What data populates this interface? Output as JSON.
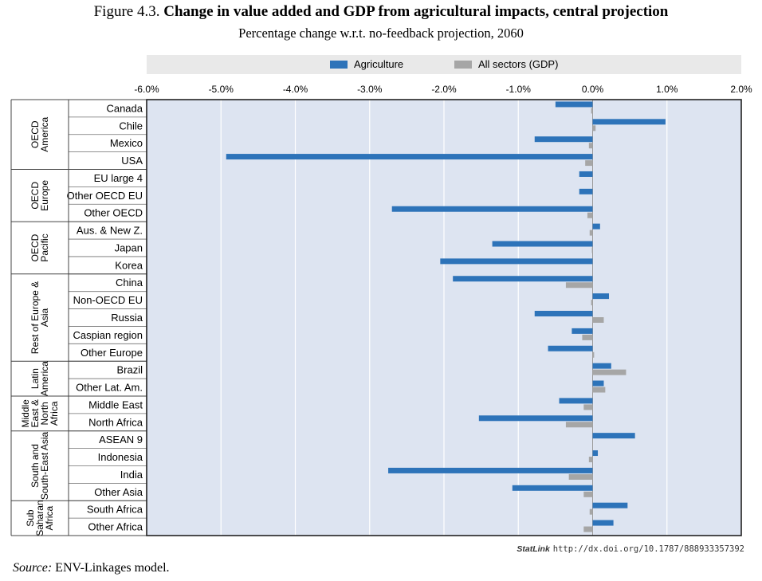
{
  "title_prefix": "Figure 4.3.",
  "title_main": "Change in value added and GDP from agricultural impacts, central projection",
  "subtitle": "Percentage change w.r.t. no-feedback projection, 2060",
  "source_label": "Source:",
  "source_text": "ENV-Linkages model.",
  "statlink_brand": "StatLink",
  "statlink_url": "http://dx.doi.org/10.1787/888933357392",
  "colors": {
    "agriculture": "#2d73b9",
    "gdp": "#a6a6a6",
    "plot_bg": "#dde4f1"
  },
  "chart_data": {
    "type": "bar",
    "orientation": "horizontal",
    "xlim": [
      -6.0,
      2.0
    ],
    "x_ticks": [
      "-6.0%",
      "-5.0%",
      "-4.0%",
      "-3.0%",
      "-2.0%",
      "-1.0%",
      "0.0%",
      "1.0%",
      "2.0%"
    ],
    "x_tick_values": [
      -6,
      -5,
      -4,
      -3,
      -2,
      -1,
      0,
      1,
      2
    ],
    "grid": "vertical",
    "legend_position": "top",
    "categories": [
      "Canada",
      "Chile",
      "Mexico",
      "USA",
      "EU large 4",
      "Other OECD EU",
      "Other OECD",
      "Aus. & New Z.",
      "Japan",
      "Korea",
      "China",
      "Non-OECD EU",
      "Russia",
      "Caspian region",
      "Other Europe",
      "Brazil",
      "Other Lat. Am.",
      "Middle East",
      "North Africa",
      "ASEAN 9",
      "Indonesia",
      "India",
      "Other Asia",
      "South Africa",
      "Other Africa"
    ],
    "groups": [
      {
        "label_lines": [
          "OECD",
          "America"
        ],
        "count": 4
      },
      {
        "label_lines": [
          "OECD",
          "Europe"
        ],
        "count": 3
      },
      {
        "label_lines": [
          "OECD",
          "Pacific"
        ],
        "count": 3
      },
      {
        "label_lines": [
          "Rest of Europe &",
          "Asia"
        ],
        "count": 5
      },
      {
        "label_lines": [
          "Latin",
          "America"
        ],
        "count": 2
      },
      {
        "label_lines": [
          "Middle",
          "East &",
          "North",
          "Africa"
        ],
        "count": 2
      },
      {
        "label_lines": [
          "South and",
          "South-East Asia"
        ],
        "count": 4
      },
      {
        "label_lines": [
          "Sub",
          "Saharan",
          "Africa"
        ],
        "count": 2
      }
    ],
    "series": [
      {
        "name": "Agriculture",
        "values": [
          -0.5,
          0.98,
          -0.78,
          -4.93,
          -0.18,
          -0.18,
          -2.7,
          0.1,
          -1.35,
          -2.05,
          -1.88,
          0.22,
          -0.78,
          -0.28,
          -0.6,
          0.25,
          0.15,
          -0.45,
          -1.53,
          0.57,
          0.07,
          -2.75,
          -1.08,
          0.47,
          0.28
        ]
      },
      {
        "name": "All sectors (GDP)",
        "values": [
          -0.02,
          0.04,
          -0.05,
          -0.1,
          0.0,
          0.0,
          -0.07,
          -0.04,
          -0.01,
          0.0,
          -0.36,
          -0.02,
          0.15,
          -0.14,
          0.02,
          0.45,
          0.17,
          -0.12,
          -0.36,
          0.0,
          -0.05,
          -0.32,
          -0.12,
          -0.04,
          -0.12
        ]
      }
    ]
  }
}
